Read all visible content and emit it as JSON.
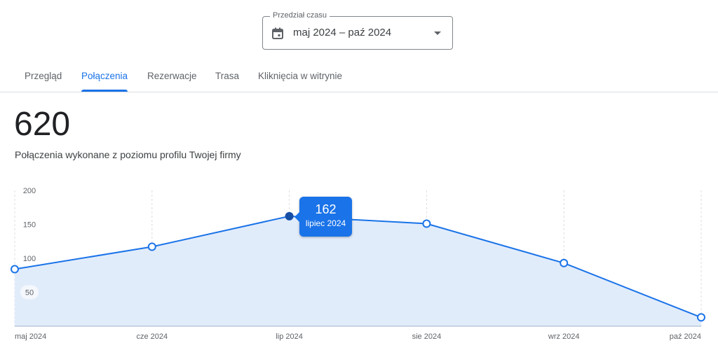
{
  "date_range": {
    "label": "Przedział czasu",
    "value": "maj 2024 – paź 2024",
    "icon": "calendar-icon"
  },
  "tabs": [
    {
      "label": "Przegląd"
    },
    {
      "label": "Połączenia",
      "active": true
    },
    {
      "label": "Rezerwacje"
    },
    {
      "label": "Trasa"
    },
    {
      "label": "Kliknięcia w witrynie"
    }
  ],
  "summary": {
    "total": "620",
    "description": "Połączenia wykonane z poziomu profilu Twojej firmy"
  },
  "tooltip": {
    "value": "162",
    "label": "lipiec 2024"
  },
  "colors": {
    "accent": "#1a73e8",
    "fill": "#e1ecfb",
    "selected_point": "#174ea6"
  },
  "chart_data": {
    "type": "area",
    "categories": [
      "maj 2024",
      "cze 2024",
      "lip 2024",
      "sie 2024",
      "wrz 2024",
      "paź 2024"
    ],
    "values": [
      84,
      117,
      162,
      151,
      93,
      13
    ],
    "ylim": [
      0,
      200
    ],
    "yticks": [
      "50",
      "100",
      "150",
      "200"
    ],
    "ytick_values": [
      50,
      100,
      150,
      200
    ],
    "grid": "vertical dashed",
    "selected_index": 2
  }
}
